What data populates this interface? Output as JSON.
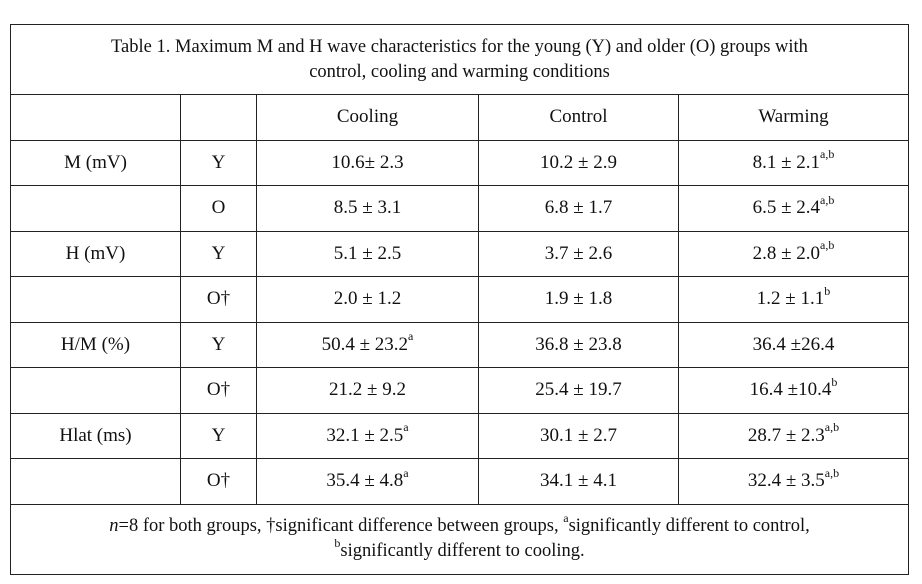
{
  "caption_line1": "Table 1. Maximum M and H wave characteristics for the young (Y) and older (O) groups with",
  "caption_line2": "control, cooling and warming conditions",
  "headers": [
    "",
    "",
    "Cooling",
    "Control",
    "Warming"
  ],
  "rows": [
    {
      "measure": "M (mV)",
      "group": "Y",
      "cooling": "10.6± 2.3",
      "cooling_sup": "",
      "control": "10.2 ± 2.9",
      "warming": "8.1 ± 2.1",
      "warming_sup": "a,b"
    },
    {
      "measure": "",
      "group": "O",
      "cooling": "8.5 ± 3.1",
      "cooling_sup": "",
      "control": "6.8 ± 1.7",
      "warming": "6.5 ± 2.4",
      "warming_sup": "a,b"
    },
    {
      "measure": "H (mV)",
      "group": "Y",
      "cooling": "5.1 ± 2.5",
      "cooling_sup": "",
      "control": "3.7 ± 2.6",
      "warming": "2.8 ± 2.0",
      "warming_sup": "a,b"
    },
    {
      "measure": "",
      "group": "O†",
      "cooling": "2.0 ± 1.2",
      "cooling_sup": "",
      "control": "1.9 ± 1.8",
      "warming": "1.2 ± 1.1",
      "warming_sup": "b"
    },
    {
      "measure": "H/M (%)",
      "group": "Y",
      "cooling": "50.4 ± 23.2",
      "cooling_sup": "a",
      "control": "36.8 ± 23.8",
      "warming": "36.4 ±26.4",
      "warming_sup": ""
    },
    {
      "measure": "",
      "group": "O†",
      "cooling": "21.2 ± 9.2",
      "cooling_sup": "",
      "control": "25.4 ± 19.7",
      "warming": "16.4 ±10.4",
      "warming_sup": "b"
    },
    {
      "measure": "Hlat (ms)",
      "group": "Y",
      "cooling": "32.1 ± 2.5",
      "cooling_sup": "a",
      "control": "30.1 ± 2.7",
      "warming": "28.7 ± 2.3",
      "warming_sup": "a,b"
    },
    {
      "measure": "",
      "group": "O†",
      "cooling": "35.4 ± 4.8",
      "cooling_sup": "a",
      "control": "34.1 ± 4.1",
      "warming": "32.4 ± 3.5",
      "warming_sup": "a,b"
    }
  ],
  "footnote": {
    "n_label": "n",
    "part1": "=8 for both groups, †significant difference between groups, ",
    "sup_a": "a",
    "part2": "significantly different to control,",
    "sup_b": "b",
    "part3": "significantly different to cooling."
  }
}
